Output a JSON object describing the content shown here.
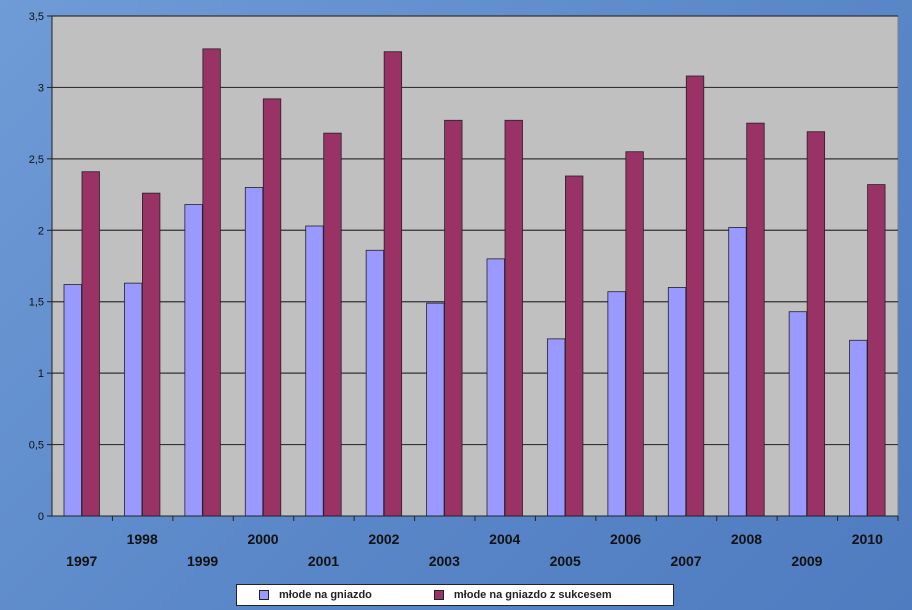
{
  "chart_data": {
    "type": "bar",
    "title": "",
    "categories": [
      "1997",
      "1998",
      "1999",
      "2000",
      "2001",
      "2002",
      "2003",
      "2004",
      "2005",
      "2006",
      "2007",
      "2008",
      "2009",
      "2010"
    ],
    "series": [
      {
        "name": "młode na gniazdo",
        "color": "#9999ff",
        "values": [
          1.62,
          1.63,
          2.18,
          2.3,
          2.03,
          1.86,
          1.49,
          1.8,
          1.24,
          1.57,
          1.6,
          2.02,
          1.43,
          1.23
        ]
      },
      {
        "name": "młode na gniazdo z sukcesem",
        "color": "#993366",
        "values": [
          2.41,
          2.26,
          3.27,
          2.92,
          2.68,
          3.25,
          2.77,
          2.77,
          2.38,
          2.55,
          3.08,
          2.75,
          2.69,
          2.32
        ]
      }
    ],
    "y_ticks": [
      "0",
      "0,5",
      "1",
      "1,5",
      "2",
      "2,5",
      "3",
      "3,5"
    ],
    "ylim": [
      0,
      3.5
    ],
    "grid": true,
    "legend_position": "bottom"
  }
}
